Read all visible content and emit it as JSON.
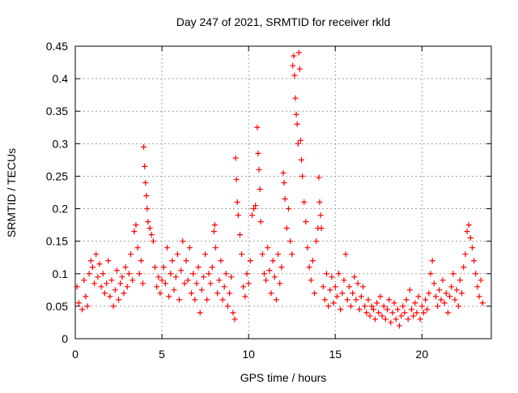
{
  "chart_data": {
    "type": "scatter",
    "title": "Day 247 of 2021, SRMTID for receiver rkld",
    "xlabel": "GPS time / hours",
    "ylabel": "SRMTID / TECUs",
    "xlim": [
      0,
      24
    ],
    "ylim": [
      0,
      0.45
    ],
    "xticks": [
      0,
      5,
      10,
      15,
      20
    ],
    "yticks": [
      0,
      0.05,
      0.1,
      0.15,
      0.2,
      0.25,
      0.3,
      0.35,
      0.4,
      0.45
    ],
    "grid": true,
    "marker": "+",
    "color": "#ff0000",
    "series": [
      {
        "name": "SRMTID",
        "points": [
          [
            0.1,
            0.08
          ],
          [
            0.2,
            0.055
          ],
          [
            0.4,
            0.045
          ],
          [
            0.5,
            0.09
          ],
          [
            0.6,
            0.065
          ],
          [
            0.7,
            0.05
          ],
          [
            0.8,
            0.1
          ],
          [
            0.9,
            0.12
          ],
          [
            1.0,
            0.11
          ],
          [
            1.1,
            0.085
          ],
          [
            1.2,
            0.13
          ],
          [
            1.3,
            0.095
          ],
          [
            1.4,
            0.115
          ],
          [
            1.5,
            0.08
          ],
          [
            1.6,
            0.1
          ],
          [
            1.7,
            0.07
          ],
          [
            1.8,
            0.085
          ],
          [
            1.9,
            0.12
          ],
          [
            2.0,
            0.065
          ],
          [
            2.1,
            0.09
          ],
          [
            2.2,
            0.05
          ],
          [
            2.3,
            0.075
          ],
          [
            2.4,
            0.105
          ],
          [
            2.5,
            0.06
          ],
          [
            2.6,
            0.085
          ],
          [
            2.7,
            0.095
          ],
          [
            2.8,
            0.07
          ],
          [
            2.9,
            0.11
          ],
          [
            3.0,
            0.08
          ],
          [
            3.1,
            0.1
          ],
          [
            3.2,
            0.13
          ],
          [
            3.3,
            0.09
          ],
          [
            3.4,
            0.165
          ],
          [
            3.5,
            0.175
          ],
          [
            3.6,
            0.14
          ],
          [
            3.7,
            0.1
          ],
          [
            3.8,
            0.12
          ],
          [
            3.9,
            0.085
          ],
          [
            3.95,
            0.295
          ],
          [
            4.0,
            0.265
          ],
          [
            4.05,
            0.24
          ],
          [
            4.1,
            0.22
          ],
          [
            4.15,
            0.2
          ],
          [
            4.2,
            0.18
          ],
          [
            4.3,
            0.17
          ],
          [
            4.4,
            0.16
          ],
          [
            4.5,
            0.15
          ],
          [
            4.6,
            0.11
          ],
          [
            4.7,
            0.08
          ],
          [
            4.8,
            0.095
          ],
          [
            4.9,
            0.07
          ],
          [
            5.0,
            0.09
          ],
          [
            5.1,
            0.11
          ],
          [
            5.2,
            0.085
          ],
          [
            5.3,
            0.14
          ],
          [
            5.4,
            0.065
          ],
          [
            5.5,
            0.1
          ],
          [
            5.6,
            0.12
          ],
          [
            5.7,
            0.075
          ],
          [
            5.8,
            0.095
          ],
          [
            5.9,
            0.13
          ],
          [
            6.0,
            0.06
          ],
          [
            6.1,
            0.105
          ],
          [
            6.2,
            0.15
          ],
          [
            6.3,
            0.085
          ],
          [
            6.4,
            0.12
          ],
          [
            6.5,
            0.09
          ],
          [
            6.6,
            0.14
          ],
          [
            6.7,
            0.07
          ],
          [
            6.8,
            0.1
          ],
          [
            6.9,
            0.06
          ],
          [
            7.0,
            0.085
          ],
          [
            7.1,
            0.11
          ],
          [
            7.2,
            0.04
          ],
          [
            7.3,
            0.075
          ],
          [
            7.4,
            0.095
          ],
          [
            7.5,
            0.13
          ],
          [
            7.6,
            0.06
          ],
          [
            7.7,
            0.1
          ],
          [
            7.8,
            0.085
          ],
          [
            7.9,
            0.11
          ],
          [
            8.0,
            0.165
          ],
          [
            8.05,
            0.175
          ],
          [
            8.1,
            0.14
          ],
          [
            8.2,
            0.07
          ],
          [
            8.3,
            0.09
          ],
          [
            8.4,
            0.12
          ],
          [
            8.5,
            0.06
          ],
          [
            8.6,
            0.08
          ],
          [
            8.7,
            0.1
          ],
          [
            8.8,
            0.05
          ],
          [
            8.9,
            0.07
          ],
          [
            9.0,
            0.095
          ],
          [
            9.1,
            0.04
          ],
          [
            9.2,
            0.03
          ],
          [
            9.25,
            0.278
          ],
          [
            9.3,
            0.245
          ],
          [
            9.35,
            0.21
          ],
          [
            9.4,
            0.19
          ],
          [
            9.5,
            0.16
          ],
          [
            9.6,
            0.13
          ],
          [
            9.7,
            0.08
          ],
          [
            9.8,
            0.065
          ],
          [
            9.9,
            0.1
          ],
          [
            10.0,
            0.085
          ],
          [
            10.1,
            0.12
          ],
          [
            10.2,
            0.19
          ],
          [
            10.3,
            0.2
          ],
          [
            10.4,
            0.205
          ],
          [
            10.5,
            0.325
          ],
          [
            10.55,
            0.285
          ],
          [
            10.6,
            0.26
          ],
          [
            10.65,
            0.23
          ],
          [
            10.7,
            0.18
          ],
          [
            10.8,
            0.13
          ],
          [
            10.9,
            0.1
          ],
          [
            11.0,
            0.09
          ],
          [
            11.1,
            0.14
          ],
          [
            11.2,
            0.105
          ],
          [
            11.3,
            0.07
          ],
          [
            11.4,
            0.12
          ],
          [
            11.5,
            0.095
          ],
          [
            11.6,
            0.06
          ],
          [
            11.7,
            0.13
          ],
          [
            11.8,
            0.085
          ],
          [
            11.9,
            0.11
          ],
          [
            12.0,
            0.255
          ],
          [
            12.05,
            0.24
          ],
          [
            12.1,
            0.215
          ],
          [
            12.2,
            0.17
          ],
          [
            12.3,
            0.2
          ],
          [
            12.4,
            0.15
          ],
          [
            12.5,
            0.13
          ],
          [
            12.55,
            0.42
          ],
          [
            12.6,
            0.435
          ],
          [
            12.65,
            0.405
          ],
          [
            12.7,
            0.37
          ],
          [
            12.75,
            0.345
          ],
          [
            12.8,
            0.33
          ],
          [
            12.85,
            0.3
          ],
          [
            12.9,
            0.44
          ],
          [
            12.95,
            0.415
          ],
          [
            13.0,
            0.305
          ],
          [
            13.05,
            0.275
          ],
          [
            13.1,
            0.25
          ],
          [
            13.2,
            0.21
          ],
          [
            13.3,
            0.18
          ],
          [
            13.4,
            0.14
          ],
          [
            13.5,
            0.11
          ],
          [
            13.6,
            0.09
          ],
          [
            13.7,
            0.12
          ],
          [
            13.8,
            0.07
          ],
          [
            13.9,
            0.15
          ],
          [
            14.0,
            0.17
          ],
          [
            14.05,
            0.248
          ],
          [
            14.1,
            0.21
          ],
          [
            14.15,
            0.19
          ],
          [
            14.2,
            0.17
          ],
          [
            14.3,
            0.08
          ],
          [
            14.4,
            0.06
          ],
          [
            14.5,
            0.1
          ],
          [
            14.6,
            0.05
          ],
          [
            14.7,
            0.075
          ],
          [
            14.8,
            0.095
          ],
          [
            14.9,
            0.055
          ],
          [
            15.0,
            0.08
          ],
          [
            15.1,
            0.065
          ],
          [
            15.2,
            0.1
          ],
          [
            15.3,
            0.045
          ],
          [
            15.4,
            0.07
          ],
          [
            15.5,
            0.09
          ],
          [
            15.6,
            0.13
          ],
          [
            15.7,
            0.06
          ],
          [
            15.8,
            0.08
          ],
          [
            15.9,
            0.05
          ],
          [
            16.0,
            0.07
          ],
          [
            16.1,
            0.095
          ],
          [
            16.2,
            0.06
          ],
          [
            16.3,
            0.085
          ],
          [
            16.4,
            0.045
          ],
          [
            16.5,
            0.065
          ],
          [
            16.6,
            0.08
          ],
          [
            16.7,
            0.05
          ],
          [
            16.8,
            0.04
          ],
          [
            16.9,
            0.06
          ],
          [
            17.0,
            0.035
          ],
          [
            17.1,
            0.05
          ],
          [
            17.2,
            0.045
          ],
          [
            17.3,
            0.03
          ],
          [
            17.4,
            0.055
          ],
          [
            17.5,
            0.04
          ],
          [
            17.6,
            0.065
          ],
          [
            17.7,
            0.035
          ],
          [
            17.8,
            0.05
          ],
          [
            17.9,
            0.03
          ],
          [
            18.0,
            0.045
          ],
          [
            18.1,
            0.06
          ],
          [
            18.2,
            0.025
          ],
          [
            18.3,
            0.04
          ],
          [
            18.4,
            0.055
          ],
          [
            18.5,
            0.03
          ],
          [
            18.6,
            0.045
          ],
          [
            18.7,
            0.02
          ],
          [
            18.8,
            0.035
          ],
          [
            18.9,
            0.05
          ],
          [
            19.0,
            0.04
          ],
          [
            19.1,
            0.06
          ],
          [
            19.2,
            0.03
          ],
          [
            19.3,
            0.075
          ],
          [
            19.4,
            0.045
          ],
          [
            19.5,
            0.035
          ],
          [
            19.6,
            0.055
          ],
          [
            19.7,
            0.04
          ],
          [
            19.8,
            0.065
          ],
          [
            19.9,
            0.03
          ],
          [
            20.0,
            0.05
          ],
          [
            20.1,
            0.04
          ],
          [
            20.2,
            0.06
          ],
          [
            20.3,
            0.045
          ],
          [
            20.4,
            0.07
          ],
          [
            20.5,
            0.1
          ],
          [
            20.6,
            0.12
          ],
          [
            20.7,
            0.085
          ],
          [
            20.8,
            0.065
          ],
          [
            20.9,
            0.05
          ],
          [
            21.0,
            0.075
          ],
          [
            21.1,
            0.06
          ],
          [
            21.2,
            0.09
          ],
          [
            21.3,
            0.055
          ],
          [
            21.4,
            0.07
          ],
          [
            21.5,
            0.04
          ],
          [
            21.6,
            0.065
          ],
          [
            21.7,
            0.08
          ],
          [
            21.8,
            0.1
          ],
          [
            21.9,
            0.06
          ],
          [
            22.0,
            0.075
          ],
          [
            22.1,
            0.05
          ],
          [
            22.2,
            0.09
          ],
          [
            22.3,
            0.07
          ],
          [
            22.4,
            0.11
          ],
          [
            22.5,
            0.13
          ],
          [
            22.6,
            0.165
          ],
          [
            22.7,
            0.175
          ],
          [
            22.8,
            0.155
          ],
          [
            22.9,
            0.14
          ],
          [
            23.0,
            0.12
          ],
          [
            23.1,
            0.1
          ],
          [
            23.2,
            0.08
          ],
          [
            23.3,
            0.065
          ],
          [
            23.4,
            0.09
          ],
          [
            23.5,
            0.055
          ]
        ]
      }
    ]
  }
}
